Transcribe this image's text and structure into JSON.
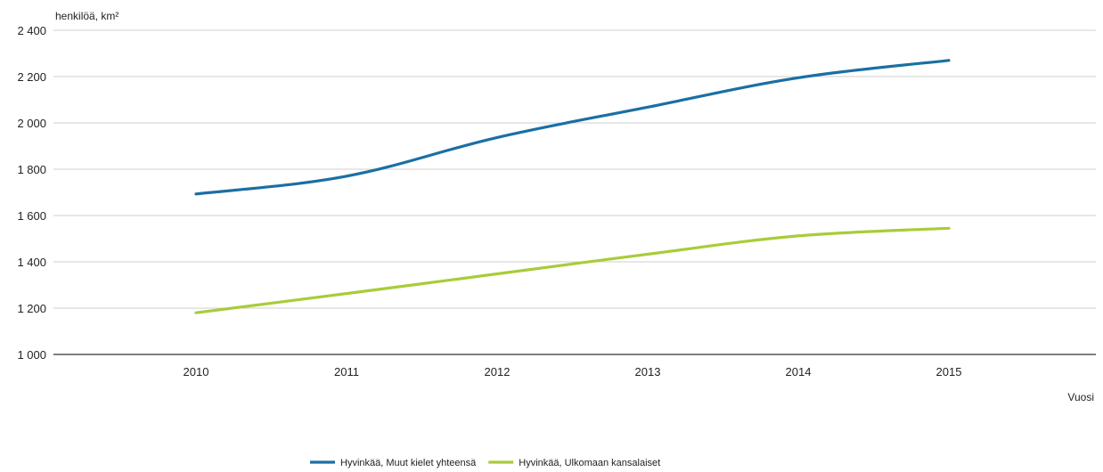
{
  "chart_data": {
    "type": "line",
    "ylabel": "henkilöä, km²",
    "xlabel": "Vuosi",
    "categories": [
      "2010",
      "2011",
      "2012",
      "2013",
      "2014",
      "2015"
    ],
    "ylim": [
      1000,
      2400
    ],
    "yticks": [
      1000,
      1200,
      1400,
      1600,
      1800,
      2000,
      2200,
      2400
    ],
    "ytick_labels": [
      "1 000",
      "1 200",
      "1 400",
      "1 600",
      "1 800",
      "2 000",
      "2 200",
      "2 400"
    ],
    "grid": true,
    "legend_position": "bottom-center",
    "series": [
      {
        "name": "Hyvinkää, Muut kielet yhteensä",
        "color": "#1a6fa3",
        "values": [
          1693,
          1770,
          1937,
          2068,
          2195,
          2270
        ]
      },
      {
        "name": "Hyvinkää, Ulkomaan kansalaiset",
        "color": "#a8cc3a",
        "values": [
          1180,
          1263,
          1348,
          1433,
          1512,
          1545
        ]
      }
    ]
  }
}
